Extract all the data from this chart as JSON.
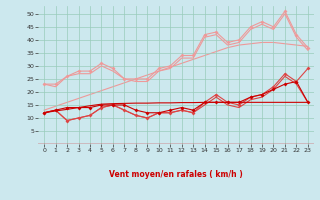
{
  "x": [
    0,
    1,
    2,
    3,
    4,
    5,
    6,
    7,
    8,
    9,
    10,
    11,
    12,
    13,
    14,
    15,
    16,
    17,
    18,
    19,
    20,
    21,
    22,
    23
  ],
  "line_light_marker": [
    23,
    23,
    26,
    28,
    28,
    31,
    29,
    25,
    25,
    25,
    29,
    30,
    34,
    34,
    42,
    43,
    39,
    40,
    45,
    47,
    45,
    51,
    42,
    37
  ],
  "line_light_plain": [
    23,
    22,
    26,
    27,
    27,
    30,
    28,
    25,
    24,
    24,
    28,
    29,
    33,
    33,
    41,
    42,
    38,
    39,
    44,
    46,
    44,
    50,
    41,
    36
  ],
  "line_light_straight": [
    13,
    14.5,
    16,
    17.5,
    19,
    20.5,
    22,
    23.5,
    25,
    26.5,
    28,
    29.5,
    31,
    32.5,
    34,
    35.5,
    37,
    38,
    38.5,
    39,
    39,
    38.5,
    38,
    37.5
  ],
  "line_mid_marker": [
    12,
    13,
    9,
    10,
    11,
    14,
    15,
    13,
    11,
    10,
    12,
    12,
    13,
    12,
    16,
    19,
    16,
    15,
    18,
    19,
    22,
    27,
    24,
    29
  ],
  "line_mid_plain": [
    12,
    13,
    9,
    10,
    11,
    14,
    15,
    13,
    11,
    10,
    12,
    12,
    13,
    12,
    15,
    18,
    15,
    14,
    17,
    18,
    21,
    26,
    23,
    16
  ],
  "line_dark_marker": [
    12,
    13,
    14,
    14,
    14,
    15,
    15,
    15,
    13,
    12,
    12,
    13,
    14,
    13,
    16,
    16,
    16,
    16,
    18,
    19,
    21,
    23,
    24,
    16
  ],
  "line_dark_straight": [
    12,
    12.7,
    13.3,
    14,
    14.7,
    15.3,
    15.5,
    15.6,
    15.7,
    15.7,
    15.8,
    15.8,
    15.9,
    15.9,
    16,
    16,
    16,
    16,
    16,
    16,
    16,
    16,
    16,
    16
  ],
  "arrows": [
    "↗",
    "↗",
    "↗",
    "↗",
    "↗",
    "↗",
    "↗",
    "↗",
    "↗",
    "→",
    "↗",
    "→",
    "↗",
    "→",
    "→",
    "→",
    "→",
    "→",
    "→",
    "→",
    "→",
    "→",
    "→",
    "→"
  ],
  "bg_color": "#cce8ee",
  "grid_color": "#99ccbb",
  "line_color_dark": "#cc0000",
  "line_color_mid": "#dd4444",
  "line_color_light": "#ee9999",
  "xlabel": "Vent moyen/en rafales ( km/h )",
  "ylim": [
    0,
    53
  ],
  "xlim": [
    -0.5,
    23.5
  ],
  "yticks": [
    5,
    10,
    15,
    20,
    25,
    30,
    35,
    40,
    45,
    50
  ],
  "xticks": [
    0,
    1,
    2,
    3,
    4,
    5,
    6,
    7,
    8,
    9,
    10,
    11,
    12,
    13,
    14,
    15,
    16,
    17,
    18,
    19,
    20,
    21,
    22,
    23
  ]
}
